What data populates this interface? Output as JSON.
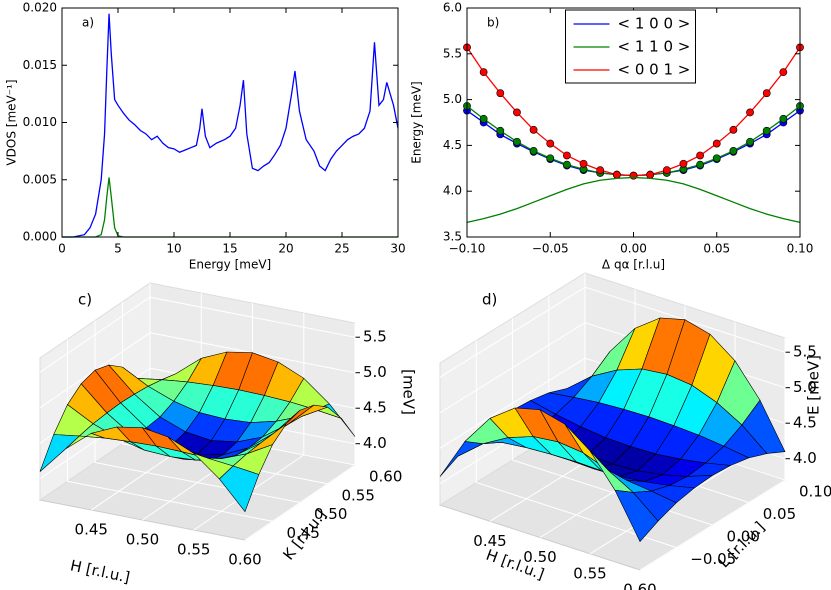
{
  "chart_data": [
    {
      "type": "line",
      "annotation": "a)",
      "xlabel": "Energy [meV]",
      "ylabel": "VDOS [meV⁻¹]",
      "x": [
        0,
        1,
        2,
        2.5,
        3,
        3.5,
        3.8,
        4.0,
        4.2,
        4.4,
        4.7,
        5,
        5.5,
        6,
        6.5,
        7,
        7.5,
        8,
        8.5,
        9,
        9.5,
        10,
        10.5,
        11,
        11.5,
        12,
        12.3,
        12.5,
        12.8,
        13.2,
        13.8,
        14.5,
        15,
        15.5,
        15.9,
        16.2,
        16.5,
        17,
        17.5,
        18,
        18.5,
        19,
        19.5,
        20,
        20.5,
        20.8,
        21.2,
        21.8,
        22.5,
        23,
        23.5,
        24,
        24.5,
        25,
        25.5,
        26,
        26.5,
        27,
        27.5,
        27.9,
        28.3,
        28.7,
        29,
        29.3,
        29.6,
        30
      ],
      "series": [
        {
          "color": "#0000ff",
          "values": [
            0,
            0,
            0.0002,
            0.0008,
            0.002,
            0.005,
            0.009,
            0.0145,
            0.0195,
            0.016,
            0.012,
            0.0115,
            0.0108,
            0.0102,
            0.0098,
            0.0093,
            0.009,
            0.0085,
            0.0088,
            0.0082,
            0.0078,
            0.0077,
            0.0074,
            0.0076,
            0.0078,
            0.008,
            0.0095,
            0.0112,
            0.0088,
            0.0078,
            0.0082,
            0.0085,
            0.0088,
            0.0095,
            0.0115,
            0.0137,
            0.009,
            0.006,
            0.0058,
            0.0062,
            0.0065,
            0.0072,
            0.008,
            0.0095,
            0.0125,
            0.0145,
            0.011,
            0.0085,
            0.0075,
            0.0062,
            0.0058,
            0.0068,
            0.0075,
            0.008,
            0.0085,
            0.0088,
            0.009,
            0.0095,
            0.011,
            0.017,
            0.0115,
            0.012,
            0.0135,
            0.0125,
            0.0115,
            0.0095
          ]
        },
        {
          "color": "#008000",
          "values": [
            0,
            0,
            0,
            0,
            0,
            0.0002,
            0.0015,
            0.0035,
            0.0052,
            0.0035,
            0.0008,
            0.0001,
            0,
            0,
            0,
            0,
            0,
            0,
            0,
            0,
            0,
            0,
            0,
            0,
            0,
            0,
            0,
            0,
            0,
            0,
            0,
            0,
            0,
            0,
            0,
            0,
            0,
            0,
            0,
            0,
            0,
            0,
            0,
            0,
            0,
            0,
            0,
            0,
            0,
            0,
            0,
            0,
            0,
            0,
            0,
            0,
            0,
            0,
            0,
            0,
            0,
            0,
            0,
            0,
            0,
            0
          ]
        }
      ],
      "xlim": [
        0,
        30
      ],
      "xticks": [
        0,
        5,
        10,
        15,
        20,
        25,
        30
      ],
      "ylim": [
        0,
        0.02
      ],
      "yticks": [
        {
          "value": 0,
          "label": "0.000"
        },
        {
          "value": 0.005,
          "label": "0.005"
        },
        {
          "value": 0.01,
          "label": "0.010"
        },
        {
          "value": 0.015,
          "label": "0.015"
        },
        {
          "value": 0.02,
          "label": "0.020"
        }
      ]
    },
    {
      "type": "line",
      "annotation": "b)",
      "xlabel": "Δ qα [r.l.u]",
      "ylabel": "Energy [meV]",
      "legend": "upper center",
      "x": [
        -0.1,
        -0.09,
        -0.08,
        -0.07,
        -0.06,
        -0.05,
        -0.04,
        -0.03,
        -0.02,
        -0.01,
        0,
        0.01,
        0.02,
        0.03,
        0.04,
        0.05,
        0.06,
        0.07,
        0.08,
        0.09,
        0.1
      ],
      "series": [
        {
          "name": "< 1 0 0 >",
          "color": "#0000ff",
          "markers": true,
          "values": [
            4.88,
            4.75,
            4.62,
            4.52,
            4.43,
            4.35,
            4.28,
            4.23,
            4.2,
            4.18,
            4.17,
            4.18,
            4.2,
            4.23,
            4.28,
            4.35,
            4.43,
            4.52,
            4.62,
            4.75,
            4.88
          ]
        },
        {
          "name": "< 1 1 0 >",
          "color": "#008000",
          "markers": true,
          "values": [
            4.93,
            4.79,
            4.66,
            4.54,
            4.44,
            4.36,
            4.29,
            4.24,
            4.2,
            4.18,
            4.17,
            4.18,
            4.2,
            4.24,
            4.29,
            4.36,
            4.44,
            4.54,
            4.66,
            4.79,
            4.93
          ]
        },
        {
          "name": "< 0 0 1 >",
          "color": "#ff0000",
          "markers": true,
          "values": [
            5.57,
            5.3,
            5.07,
            4.86,
            4.67,
            4.52,
            4.39,
            4.3,
            4.23,
            4.18,
            4.17,
            4.18,
            4.23,
            4.3,
            4.39,
            4.52,
            4.67,
            4.86,
            5.07,
            5.3,
            5.57
          ]
        },
        {
          "color": "#008000",
          "values": [
            3.66,
            3.7,
            3.75,
            3.81,
            3.88,
            3.95,
            4.02,
            4.08,
            4.12,
            4.14,
            4.15,
            4.14,
            4.12,
            4.08,
            4.02,
            3.95,
            3.88,
            3.81,
            3.75,
            3.7,
            3.66
          ]
        }
      ],
      "xlim": [
        -0.1,
        0.1
      ],
      "xticks": [
        {
          "value": -0.1,
          "label": "−0.10"
        },
        {
          "value": -0.05,
          "label": "−0.05"
        },
        {
          "value": 0,
          "label": "0.00"
        },
        {
          "value": 0.05,
          "label": "0.05"
        },
        {
          "value": 0.1,
          "label": "0.10"
        }
      ],
      "ylim": [
        3.5,
        6
      ],
      "yticks": [
        3.5,
        {
          "value": 4,
          "label": "4.0"
        },
        4.5,
        {
          "value": 5,
          "label": "5.0"
        },
        5.5,
        {
          "value": 6,
          "label": "6.0"
        }
      ]
    },
    {
      "type": "surface",
      "annotation": "c)",
      "xlabel": "H [r.l.u.]",
      "ylabel": "K [r.l.u.]",
      "zlabel": "[meV]",
      "x": [
        0.4,
        0.425,
        0.45,
        0.475,
        0.5,
        0.525,
        0.55,
        0.575,
        0.6
      ],
      "y": [
        0.4,
        0.425,
        0.45,
        0.475,
        0.5,
        0.525,
        0.55,
        0.575,
        0.6
      ],
      "z": [
        [
          4.1,
          4.49,
          4.78,
          4.94,
          5.0,
          4.94,
          4.78,
          4.49,
          4.1
        ],
        [
          4.49,
          4.54,
          4.58,
          4.6,
          4.61,
          4.6,
          4.58,
          4.54,
          4.49
        ],
        [
          4.78,
          4.58,
          4.44,
          4.35,
          4.33,
          4.35,
          4.44,
          4.58,
          4.78
        ],
        [
          4.94,
          4.6,
          4.35,
          4.21,
          4.16,
          4.21,
          4.35,
          4.6,
          4.94
        ],
        [
          5.0,
          4.61,
          4.33,
          4.16,
          4.1,
          4.16,
          4.33,
          4.61,
          5.0
        ],
        [
          4.94,
          4.6,
          4.35,
          4.21,
          4.16,
          4.21,
          4.35,
          4.6,
          4.94
        ],
        [
          4.78,
          4.58,
          4.44,
          4.35,
          4.33,
          4.35,
          4.44,
          4.58,
          4.78
        ],
        [
          4.49,
          4.54,
          4.58,
          4.6,
          4.61,
          4.6,
          4.58,
          4.54,
          4.49
        ],
        [
          4.1,
          4.49,
          4.78,
          4.94,
          5.0,
          4.94,
          4.78,
          4.49,
          4.1
        ]
      ],
      "xlim": [
        0.4,
        0.6
      ],
      "xticks": [
        0.45,
        {
          "value": 0.5,
          "label": "0.50"
        },
        0.55,
        {
          "value": 0.6,
          "label": "0.60"
        }
      ],
      "ylim": [
        0.4,
        0.6
      ],
      "yticks": [
        0.45,
        {
          "value": 0.5,
          "label": "0.50"
        },
        0.55,
        {
          "value": 0.6,
          "label": "0.60"
        }
      ],
      "zlim": [
        3.7,
        5.7
      ],
      "zticks": [
        {
          "value": 4,
          "label": "4.0"
        },
        4.5,
        {
          "value": 5,
          "label": "5.0"
        },
        5.5
      ]
    },
    {
      "type": "surface",
      "annotation": "d)",
      "xlabel": "H [r.l.u.]",
      "ylabel": "L [r.l.u.]",
      "zlabel": "E [meV]",
      "x": [
        0.4,
        0.425,
        0.45,
        0.475,
        0.5,
        0.525,
        0.55,
        0.575,
        0.6
      ],
      "y": [
        -0.1,
        -0.075,
        -0.05,
        -0.025,
        0,
        0.025,
        0.05,
        0.075,
        0.1
      ],
      "z": [
        [
          4.1,
          4.23,
          4.33,
          4.38,
          4.4,
          4.38,
          4.33,
          4.23,
          4.1
        ],
        [
          4.71,
          4.52,
          4.38,
          4.3,
          4.27,
          4.3,
          4.38,
          4.52,
          4.71
        ],
        [
          5.15,
          4.72,
          4.42,
          4.24,
          4.18,
          4.24,
          4.42,
          4.72,
          5.15
        ],
        [
          5.41,
          4.85,
          4.44,
          4.2,
          4.12,
          4.2,
          4.44,
          4.85,
          5.41
        ],
        [
          5.5,
          4.89,
          4.45,
          4.19,
          4.1,
          4.19,
          4.45,
          4.89,
          5.5
        ],
        [
          5.41,
          4.85,
          4.44,
          4.2,
          4.12,
          4.2,
          4.44,
          4.85,
          5.41
        ],
        [
          5.15,
          4.72,
          4.42,
          4.24,
          4.18,
          4.24,
          4.42,
          4.72,
          5.15
        ],
        [
          4.71,
          4.52,
          4.38,
          4.3,
          4.27,
          4.3,
          4.38,
          4.52,
          4.71
        ],
        [
          4.1,
          4.23,
          4.33,
          4.38,
          4.4,
          4.38,
          4.33,
          4.23,
          4.1
        ]
      ],
      "xlim": [
        0.4,
        0.6
      ],
      "xticks": [
        0.45,
        {
          "value": 0.5,
          "label": "0.50"
        },
        0.55,
        {
          "value": 0.6,
          "label": "0.60"
        }
      ],
      "ylim": [
        -0.1,
        0.1
      ],
      "yticks": [
        {
          "value": -0.05,
          "label": "−0.05"
        },
        {
          "value": 0,
          "label": "0.00"
        },
        0.05,
        {
          "value": 0.1,
          "label": "0.10"
        }
      ],
      "zlim": [
        3.7,
        5.7
      ],
      "zticks": [
        {
          "value": 4,
          "label": "4.0"
        },
        4.5,
        {
          "value": 5,
          "label": "5.0"
        },
        5.5
      ]
    }
  ]
}
